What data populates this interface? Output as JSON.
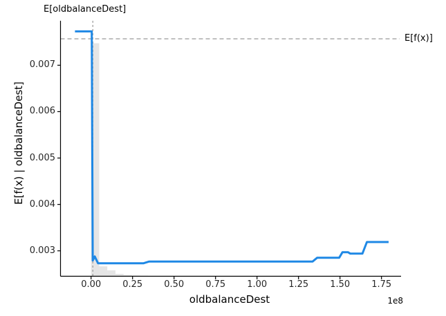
{
  "figure": {
    "title": "E[oldbalanceDest]",
    "xlabel": "oldbalanceDest",
    "ylabel": "E[f(x) | oldbalanceDest]",
    "x_offset_label": "1e8",
    "expected_fx_label": "E[f(x)]"
  },
  "chart_data": {
    "type": "line",
    "title": "E[oldbalanceDest]",
    "xlabel": "oldbalanceDest",
    "ylabel": "E[f(x) | oldbalanceDest]",
    "x_scale_factor": "1e8",
    "grid": false,
    "legend_position": "none",
    "xlim": [
      -0.1842,
      1.8596
    ],
    "ylim": [
      0.002452,
      0.007959
    ],
    "x_ticks": {
      "values": [
        0.0,
        0.25,
        0.5,
        0.75,
        1.0,
        1.25,
        1.5,
        1.75
      ],
      "labels": [
        "0.00",
        "0.25",
        "0.50",
        "0.75",
        "1.00",
        "1.25",
        "1.50",
        "1.75"
      ]
    },
    "y_ticks": {
      "values": [
        0.003,
        0.004,
        0.005,
        0.006,
        0.007
      ],
      "labels": [
        "0.003",
        "0.004",
        "0.005",
        "0.006",
        "0.007"
      ]
    },
    "reference_lines": {
      "horizontal": {
        "label": "E[f(x)]",
        "value": 0.00757,
        "style": "dashed",
        "color": "#999999"
      },
      "vertical": {
        "label": "E[oldbalanceDest]",
        "value": 0.0105,
        "style": "dashed",
        "color": "#999999"
      }
    },
    "series": [
      {
        "name": "E[f(x) | oldbalanceDest]",
        "color": "#1e88e5",
        "points": [
          [
            -0.097,
            0.00773
          ],
          [
            0.004,
            0.00773
          ],
          [
            0.01,
            0.00279
          ],
          [
            0.022,
            0.00288
          ],
          [
            0.042,
            0.00273
          ],
          [
            0.315,
            0.00273
          ],
          [
            0.35,
            0.00277
          ],
          [
            1.335,
            0.00277
          ],
          [
            1.362,
            0.00285
          ],
          [
            1.495,
            0.00285
          ],
          [
            1.515,
            0.00297
          ],
          [
            1.548,
            0.00297
          ],
          [
            1.562,
            0.00294
          ],
          [
            1.635,
            0.00294
          ],
          [
            1.662,
            0.00319
          ],
          [
            1.793,
            0.00319
          ]
        ]
      }
    ],
    "histogram": {
      "color_fill_opacity": 0.1,
      "bin_width": 0.049,
      "bins": [
        {
          "x0": 0.0,
          "height_frac": 0.912
        },
        {
          "x0": 0.049,
          "height_frac": 0.039
        },
        {
          "x0": 0.098,
          "height_frac": 0.023
        },
        {
          "x0": 0.147,
          "height_frac": 0.009
        },
        {
          "x0": 0.196,
          "height_frac": 0.005
        },
        {
          "x0": 0.245,
          "height_frac": 0.003
        },
        {
          "x0": 0.294,
          "height_frac": 0.002
        },
        {
          "x0": 0.343,
          "height_frac": 0.001
        }
      ]
    },
    "colors": {
      "line": "#1e88e5",
      "reference": "#999999",
      "spine": "#000000",
      "tick_text": "#262626"
    }
  }
}
